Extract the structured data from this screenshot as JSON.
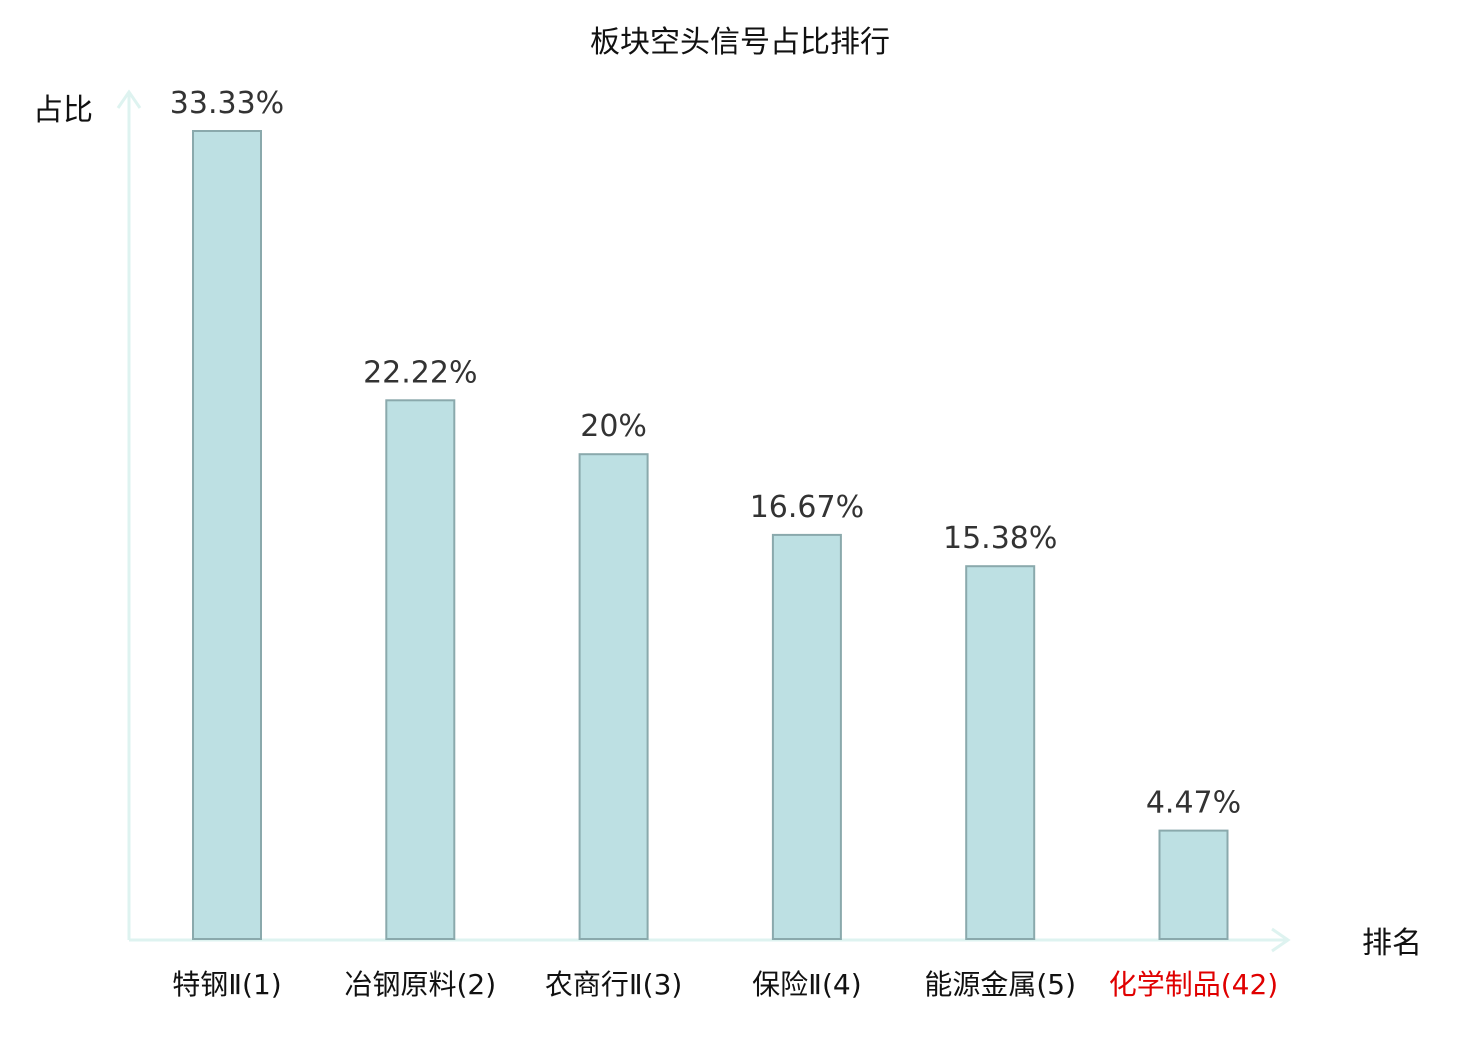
{
  "chart_data": {
    "type": "bar",
    "title": "板块空头信号占比排行",
    "xlabel": "排名",
    "ylabel": "占比",
    "categories": [
      "特钢Ⅱ(1)",
      "冶钢原料(2)",
      "农商行Ⅱ(3)",
      "保险Ⅱ(4)",
      "能源金属(5)",
      "化学制品(42)"
    ],
    "values": [
      33.33,
      22.22,
      20,
      16.67,
      15.38,
      4.47
    ],
    "value_labels": [
      "33.33%",
      "22.22%",
      "20%",
      "16.67%",
      "15.38%",
      "4.47%"
    ],
    "highlight_index": 5,
    "ylim": [
      0,
      33.33
    ],
    "grid": false,
    "legend": "none"
  },
  "colors": {
    "bar_fill": "#bde0e3",
    "bar_stroke": "#8aa9ac",
    "axis": "#def3f0",
    "text": "#111111",
    "value_label": "#333333",
    "highlight": "#e00000"
  }
}
